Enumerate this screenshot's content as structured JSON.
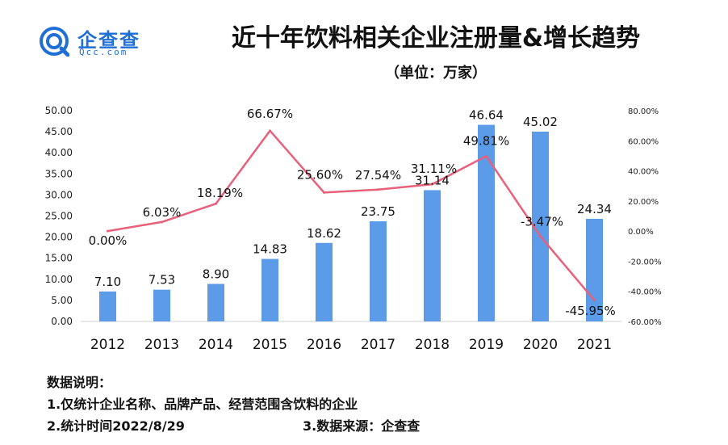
{
  "logo": {
    "cn": "企查查",
    "en": "Qcc.com",
    "brand_color": "#1f6fd6"
  },
  "title": "近十年饮料相关企业注册量&增长趋势",
  "subtitle": "（单位：万家）",
  "chart_data": {
    "type": "bar",
    "categories": [
      "2012",
      "2013",
      "2014",
      "2015",
      "2016",
      "2017",
      "2018",
      "2019",
      "2020",
      "2021"
    ],
    "series": [
      {
        "values": [
          7.1,
          7.53,
          8.9,
          14.83,
          18.62,
          23.75,
          31.14,
          46.64,
          45.02,
          24.34
        ],
        "labels": [
          "7.10",
          "7.53",
          "8.90",
          "14.83",
          "18.62",
          "23.75",
          "31.14",
          "46.64",
          "45.02",
          "24.34"
        ],
        "type": "bar",
        "axis": "left",
        "color": "#5b9be8"
      },
      {
        "values": [
          0.0,
          6.03,
          18.19,
          66.67,
          25.6,
          27.54,
          31.11,
          49.81,
          -3.47,
          -45.95
        ],
        "labels": [
          "0.00%",
          "6.03%",
          "18.19%",
          "66.67%",
          "25.60%",
          "27.54%",
          "31.11%",
          "49.81%",
          "-3.47%",
          "-45.95%"
        ],
        "type": "line",
        "axis": "right",
        "color": "#e8607a"
      }
    ],
    "ylim": [
      0,
      50
    ],
    "y_ticks": [
      "0.00",
      "5.00",
      "10.00",
      "15.00",
      "20.00",
      "25.00",
      "30.00",
      "35.00",
      "40.00",
      "45.00",
      "50.00"
    ],
    "y2lim": [
      -60,
      80
    ],
    "y2_ticks": [
      "-60.00%",
      "-40.00%",
      "-20.00%",
      "0.00%",
      "20.00%",
      "40.00%",
      "60.00%",
      "80.00%"
    ],
    "grid": false
  },
  "notes": {
    "heading": "数据说明：",
    "line1": "1.仅统计企业名称、品牌产品、经营范围含饮料的企业",
    "line2": "2.统计时间2022/8/29",
    "line3": "3.数据来源：企查查"
  }
}
